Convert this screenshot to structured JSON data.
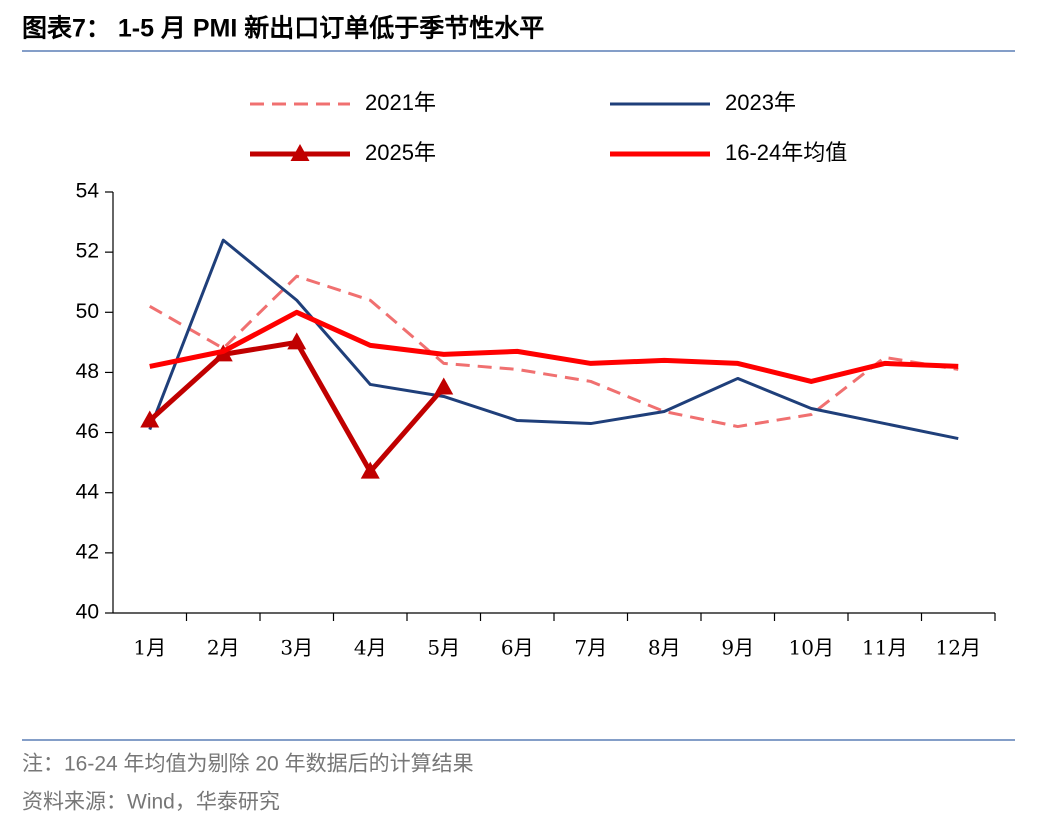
{
  "chart_data": {
    "type": "line",
    "title": "图表7： 1-5 月 PMI 新出口订单低于季节性水平",
    "categories": [
      "1月",
      "2月",
      "3月",
      "4月",
      "5月",
      "6月",
      "7月",
      "8月",
      "9月",
      "10月",
      "11月",
      "12月"
    ],
    "series": [
      {
        "name": "2021年",
        "color": "#f07070",
        "dashed": true,
        "values": [
          50.2,
          48.8,
          51.2,
          50.4,
          48.3,
          48.1,
          47.7,
          46.7,
          46.2,
          46.6,
          48.5,
          48.1
        ]
      },
      {
        "name": "2023年",
        "color": "#1f3f7a",
        "values": [
          46.1,
          52.4,
          50.4,
          47.6,
          47.2,
          46.4,
          46.3,
          46.7,
          47.8,
          46.8,
          46.3,
          45.8
        ]
      },
      {
        "name": "2025年",
        "color": "#c00000",
        "marker": "triangle",
        "values": [
          46.4,
          48.6,
          49.0,
          44.7,
          47.5,
          null,
          null,
          null,
          null,
          null,
          null,
          null
        ]
      },
      {
        "name": "16-24年均值",
        "color": "#ff0000",
        "values": [
          48.2,
          48.7,
          50.0,
          48.9,
          48.6,
          48.7,
          48.3,
          48.4,
          48.3,
          47.7,
          48.3,
          48.2
        ]
      }
    ],
    "ylim": [
      40,
      54
    ],
    "yticks": [
      40,
      42,
      44,
      46,
      48,
      50,
      52,
      54
    ],
    "notes": [
      "注：16-24 年均值为剔除 20 年数据后的计算结果",
      "资料来源：Wind，华泰研究"
    ]
  }
}
